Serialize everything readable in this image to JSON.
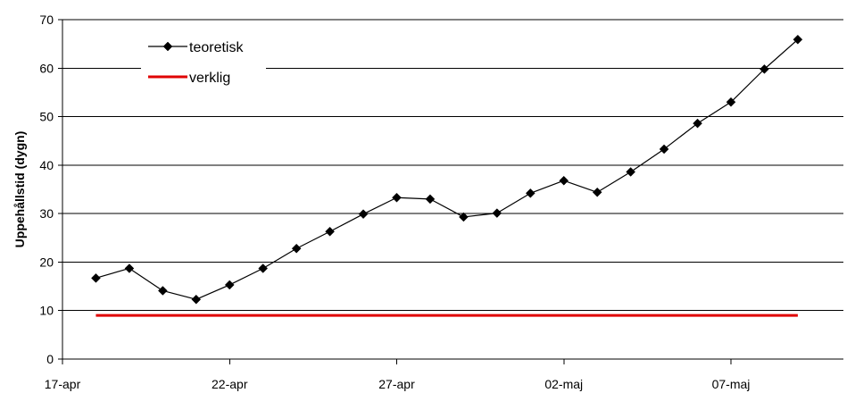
{
  "chart_data": {
    "type": "line",
    "title": "",
    "xlabel": "",
    "ylabel": "Uppehållstid (dygn)",
    "ylim": [
      0,
      70
    ],
    "yticks": [
      0,
      10,
      20,
      30,
      40,
      50,
      60,
      70
    ],
    "xticks": [
      "17-apr",
      "22-apr",
      "27-apr",
      "02-maj",
      "07-maj"
    ],
    "grid": "horizontal",
    "legend_position": "top-left",
    "series": [
      {
        "name": "teoretisk",
        "color": "#000000",
        "marker": "diamond",
        "x": [
          "18-apr",
          "19-apr",
          "20-apr",
          "21-apr",
          "22-apr",
          "23-apr",
          "24-apr",
          "25-apr",
          "26-apr",
          "27-apr",
          "28-apr",
          "29-apr",
          "30-apr",
          "01-maj",
          "02-maj",
          "03-maj",
          "04-maj",
          "05-maj",
          "06-maj",
          "07-maj",
          "08-maj",
          "09-maj"
        ],
        "values": [
          16.7,
          18.7,
          14.1,
          12.3,
          15.3,
          18.7,
          22.8,
          26.3,
          29.9,
          33.3,
          33.0,
          29.3,
          30.1,
          34.2,
          36.8,
          34.4,
          38.6,
          43.3,
          48.6,
          53.0,
          59.8,
          65.9
        ]
      },
      {
        "name": "verklig",
        "color": "#e00000",
        "marker": "none",
        "x": [
          "18-apr",
          "09-maj"
        ],
        "values": [
          9,
          9
        ]
      }
    ]
  }
}
